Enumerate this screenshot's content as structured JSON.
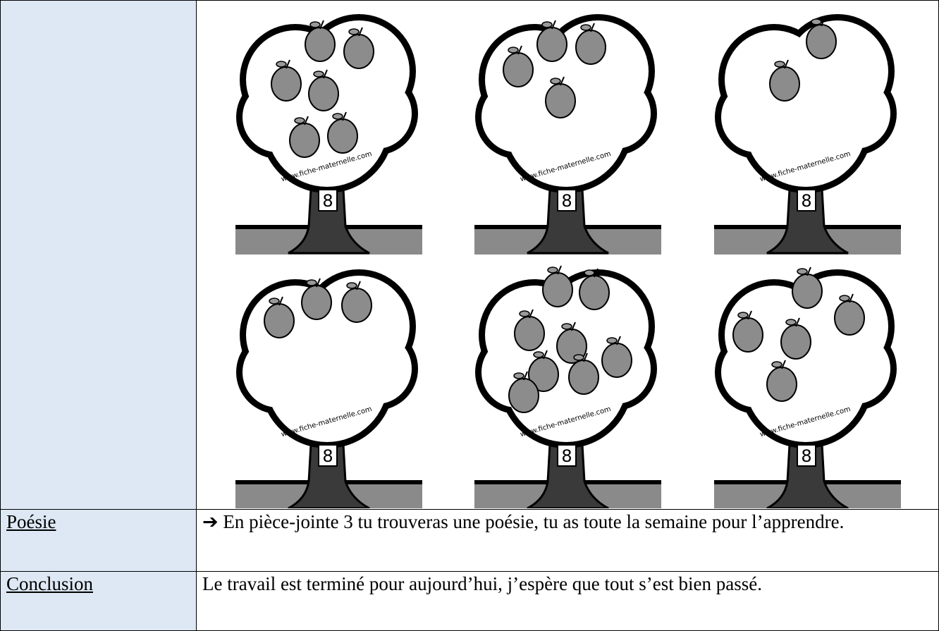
{
  "watermark": "www.fiche-maternelle.com",
  "trees": [
    {
      "label": "8"
    },
    {
      "label": "8"
    },
    {
      "label": "8"
    },
    {
      "label": "8"
    },
    {
      "label": "8"
    },
    {
      "label": "8"
    }
  ],
  "rows": [
    [
      "Poésie",
      "➔ En pièce-jointe 3 tu trouveras une poésie, tu as toute la semaine pour l’apprendre."
    ],
    [
      "Conclusion",
      "Le travail est terminé pour aujourd’hui, j’espère que tout s’est bien passé."
    ]
  ]
}
